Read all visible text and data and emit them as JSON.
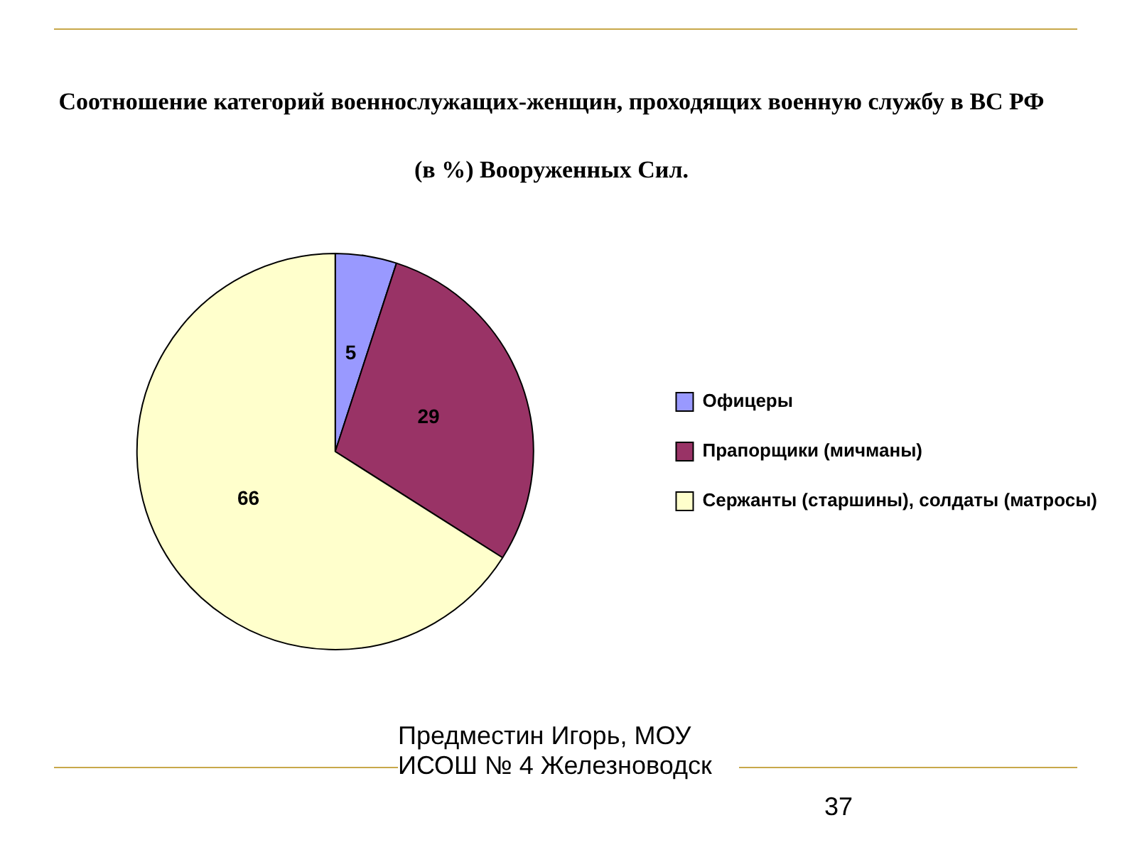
{
  "chart_data": {
    "type": "pie",
    "title": "Соотношение категорий военнослужащих-женщин, проходящих военную службу в ВС РФ (в %) Вооруженных Сил.",
    "categories": [
      "Офицеры",
      "Прапорщики (мичманы)",
      "Сержанты (старшины), солдаты (матросы)"
    ],
    "values": [
      5,
      29,
      66
    ],
    "colors": [
      "#9999ff",
      "#993366",
      "#ffffcc"
    ],
    "data_labels": true,
    "legend": "right",
    "annotations": [
      "Предместин Игорь, МОУ ИСОШ № 4 Железноводск",
      "37"
    ]
  }
}
